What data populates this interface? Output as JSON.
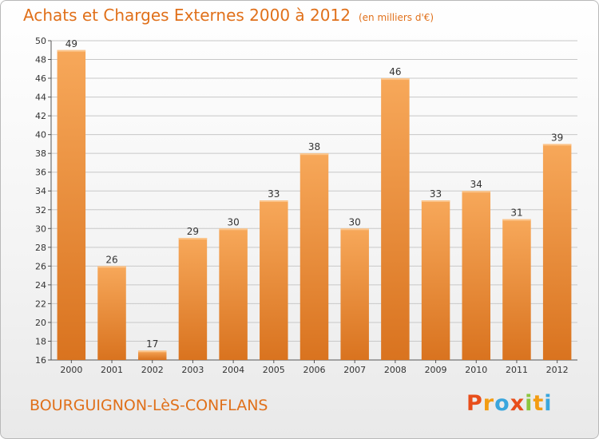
{
  "title": {
    "main": "Achats et Charges Externes 2000 à 2012",
    "unit": "(en milliers d'€)"
  },
  "subtitle": "BOURGUIGNON-LèS-CONFLANS",
  "logo": {
    "text": "Proxiti",
    "letters": [
      {
        "char": "P",
        "color": "#e84e1b"
      },
      {
        "char": "r",
        "color": "#f39c12"
      },
      {
        "char": "o",
        "color": "#3aa6dd"
      },
      {
        "char": "x",
        "color": "#e84e1b"
      },
      {
        "char": "i",
        "color": "#8cc63f"
      },
      {
        "char": "t",
        "color": "#f39c12"
      },
      {
        "char": "i",
        "color": "#3aa6dd"
      }
    ]
  },
  "colors": {
    "title": "#e0701a",
    "bar_top": "#f7a85a",
    "bar_bottom": "#d9731f",
    "grid": "#c8c8c8"
  },
  "chart_data": {
    "type": "bar",
    "categories": [
      "2000",
      "2001",
      "2002",
      "2003",
      "2004",
      "2005",
      "2006",
      "2007",
      "2008",
      "2009",
      "2010",
      "2011",
      "2012"
    ],
    "values": [
      49,
      26,
      17,
      29,
      30,
      33,
      38,
      30,
      46,
      33,
      34,
      31,
      39
    ],
    "title": "Achats et Charges Externes 2000 à 2012",
    "xlabel": "",
    "ylabel": "",
    "ylim": [
      16,
      50
    ],
    "yticks": [
      16,
      18,
      20,
      22,
      24,
      26,
      28,
      30,
      32,
      34,
      36,
      38,
      40,
      42,
      44,
      46,
      48,
      50
    ],
    "grid": true
  }
}
